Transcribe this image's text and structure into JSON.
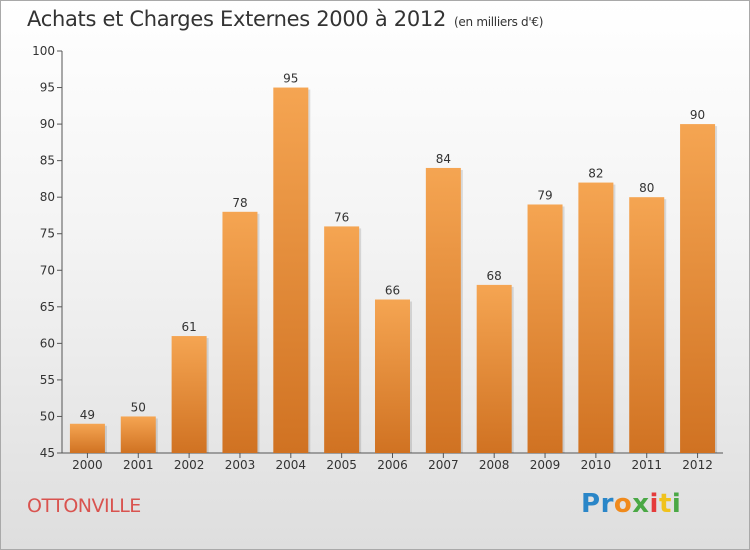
{
  "title": "Achats et Charges Externes 2000 à 2012",
  "subtitle": "(en milliers d'€)",
  "town": "OTTONVILLE",
  "logo": {
    "text": "Proxiti",
    "letters": [
      {
        "ch": "P",
        "color": "#2a86c8"
      },
      {
        "ch": "r",
        "color": "#2a86c8"
      },
      {
        "ch": "o",
        "color": "#f08a1c"
      },
      {
        "ch": "x",
        "color": "#4aa845"
      },
      {
        "ch": "i",
        "color": "#e53b3b"
      },
      {
        "ch": "t",
        "color": "#f0c21c"
      },
      {
        "ch": "i",
        "color": "#4aa845"
      }
    ]
  },
  "colors": {
    "bar_top": "#f5a552",
    "bar_bottom": "#d07222",
    "town": "#d9534f"
  },
  "chart_data": {
    "type": "bar",
    "title": "Achats et Charges Externes 2000 à 2012",
    "subtitle": "(en milliers d'€)",
    "categories": [
      "2000",
      "2001",
      "2002",
      "2003",
      "2004",
      "2005",
      "2006",
      "2007",
      "2008",
      "2009",
      "2010",
      "2011",
      "2012"
    ],
    "values": [
      49,
      50,
      61,
      78,
      95,
      76,
      66,
      84,
      68,
      79,
      82,
      80,
      90
    ],
    "ylim": [
      45,
      100
    ],
    "yticks": [
      45,
      50,
      55,
      60,
      65,
      70,
      75,
      80,
      85,
      90,
      95,
      100
    ],
    "grid": false,
    "data_labels": true
  }
}
